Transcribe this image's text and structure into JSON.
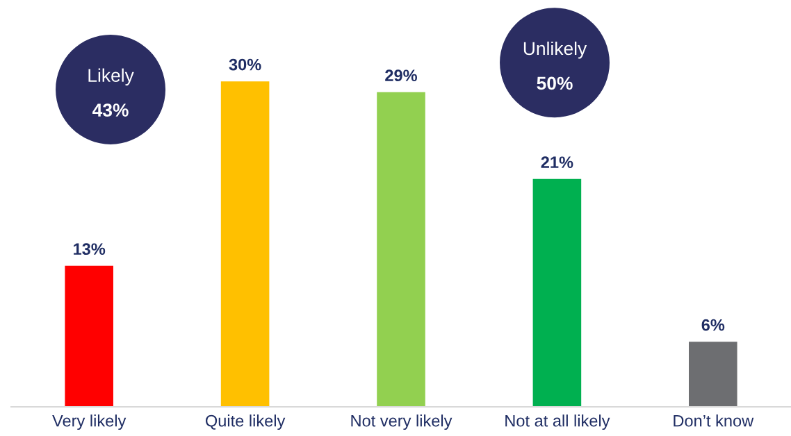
{
  "chart_data": {
    "type": "bar",
    "categories": [
      "Very likely",
      "Quite likely",
      "Not very likely",
      "Not at all likely",
      "Don’t know"
    ],
    "values": [
      13,
      30,
      29,
      21,
      6
    ],
    "colors": [
      "#ff0000",
      "#ffc000",
      "#92d050",
      "#00b050",
      "#6d6e71"
    ],
    "value_labels": [
      "13%",
      "30%",
      "29%",
      "21%",
      "6%"
    ],
    "annotations": [
      "Likely\n43%",
      "Unlikely\n50%"
    ]
  }
}
